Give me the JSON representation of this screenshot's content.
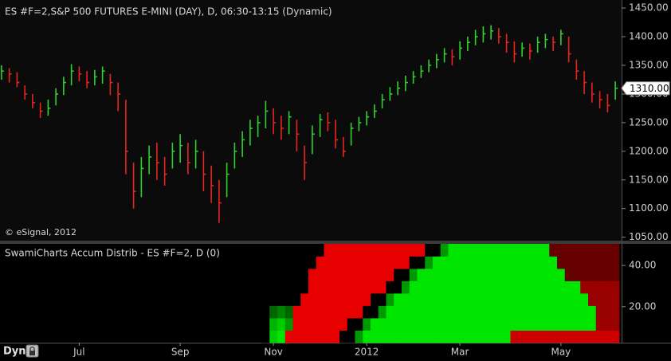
{
  "chart_data": [
    {
      "type": "ohlc",
      "title": "ES #F=2,S&P 500 FUTURES E-MINI (DAY), D, 06:30-13:15 (Dynamic)",
      "copyright": "© eSignal, 2012",
      "categories": [
        null,
        null,
        null,
        null,
        null,
        null,
        null,
        null,
        null,
        null,
        "Jul",
        null,
        null,
        null,
        null,
        null,
        null,
        null,
        null,
        null,
        null,
        null,
        null,
        "Sep",
        null,
        null,
        null,
        null,
        null,
        null,
        null,
        null,
        null,
        null,
        null,
        "Nov",
        null,
        null,
        null,
        null,
        null,
        null,
        null,
        null,
        null,
        null,
        null,
        "2012",
        null,
        null,
        null,
        null,
        null,
        null,
        null,
        null,
        null,
        null,
        null,
        "Mar",
        null,
        null,
        null,
        null,
        null,
        null,
        null,
        null,
        null,
        null,
        null,
        null,
        "May",
        null,
        null,
        null,
        null,
        null,
        null,
        null
      ],
      "high": [
        1350,
        1345,
        1338,
        1315,
        1300,
        1285,
        1290,
        1310,
        1330,
        1352,
        1348,
        1340,
        1342,
        1348,
        1335,
        1320,
        1290,
        1180,
        1190,
        1210,
        1215,
        1190,
        1215,
        1230,
        1215,
        1220,
        1200,
        1175,
        1150,
        1180,
        1215,
        1235,
        1255,
        1262,
        1288,
        1275,
        1262,
        1270,
        1255,
        1210,
        1245,
        1265,
        1268,
        1255,
        1225,
        1250,
        1260,
        1270,
        1282,
        1300,
        1312,
        1322,
        1332,
        1340,
        1350,
        1360,
        1370,
        1380,
        1378,
        1392,
        1400,
        1412,
        1418,
        1420,
        1415,
        1405,
        1392,
        1390,
        1388,
        1400,
        1405,
        1400,
        1412,
        1400,
        1360,
        1340,
        1320,
        1305,
        1300,
        1322
      ],
      "low": [
        1325,
        1320,
        1312,
        1290,
        1275,
        1258,
        1262,
        1280,
        1298,
        1315,
        1322,
        1310,
        1315,
        1318,
        1298,
        1270,
        1160,
        1100,
        1120,
        1160,
        1150,
        1140,
        1170,
        1180,
        1160,
        1170,
        1130,
        1110,
        1075,
        1120,
        1170,
        1190,
        1210,
        1225,
        1240,
        1230,
        1220,
        1230,
        1200,
        1150,
        1195,
        1225,
        1235,
        1205,
        1190,
        1210,
        1235,
        1245,
        1258,
        1275,
        1288,
        1298,
        1305,
        1318,
        1328,
        1338,
        1345,
        1355,
        1350,
        1360,
        1375,
        1385,
        1390,
        1395,
        1388,
        1372,
        1355,
        1365,
        1360,
        1372,
        1380,
        1375,
        1385,
        1355,
        1325,
        1300,
        1285,
        1275,
        1268,
        1290
      ],
      "close": [
        1340,
        1335,
        1320,
        1300,
        1285,
        1270,
        1275,
        1300,
        1320,
        1340,
        1335,
        1320,
        1330,
        1340,
        1320,
        1300,
        1200,
        1130,
        1170,
        1190,
        1180,
        1160,
        1200,
        1210,
        1180,
        1200,
        1160,
        1140,
        1110,
        1160,
        1200,
        1220,
        1240,
        1250,
        1270,
        1250,
        1240,
        1260,
        1230,
        1180,
        1230,
        1255,
        1250,
        1220,
        1200,
        1240,
        1250,
        1260,
        1270,
        1290,
        1300,
        1310,
        1320,
        1330,
        1340,
        1350,
        1360,
        1370,
        1365,
        1380,
        1390,
        1400,
        1405,
        1410,
        1400,
        1390,
        1370,
        1380,
        1375,
        1390,
        1395,
        1390,
        1405,
        1370,
        1340,
        1320,
        1300,
        1290,
        1280,
        1310
      ],
      "up_color": "#2fd12f",
      "down_color": "#e8251f",
      "ylim": [
        1044,
        1464
      ],
      "yticks": [
        {
          "value": 1050,
          "label": "1050.00"
        },
        {
          "value": 1100,
          "label": "1100.00"
        },
        {
          "value": 1150,
          "label": "1150.00"
        },
        {
          "value": 1200,
          "label": "1200.00"
        },
        {
          "value": 1250,
          "label": "1250.00"
        },
        {
          "value": 1300,
          "label": "1300.00"
        },
        {
          "value": 1350,
          "label": "1350.00"
        },
        {
          "value": 1400,
          "label": "1400.00"
        },
        {
          "value": 1450,
          "label": "1450.00"
        }
      ],
      "last_price": {
        "value": 1310,
        "label": "1310.00"
      }
    },
    {
      "type": "heatmap",
      "title": "SwamiCharts Accum Distrib - ES #F=2, D (0)",
      "y_bins": [
        2.5,
        8.5,
        14.5,
        20.5,
        26.5,
        32.5,
        38.5,
        44.5,
        50.5
      ],
      "values": [
        null,
        null,
        null,
        null,
        null,
        null,
        null,
        null,
        null,
        null,
        null,
        null,
        null,
        null,
        null,
        null,
        null,
        null,
        null,
        null,
        null,
        null,
        null,
        null,
        null,
        null,
        null,
        null,
        null,
        null,
        null,
        null,
        null,
        null,
        [
          0,
          0,
          0,
          0,
          0,
          0,
          0,
          0
        ],
        [
          0.8,
          0.7,
          0.4,
          0,
          0,
          0,
          0,
          0
        ],
        [
          0.9,
          0.8,
          0.5,
          0,
          0,
          0,
          0,
          0
        ],
        [
          -0.9,
          0.6,
          0.4,
          0,
          0,
          0,
          0,
          0
        ],
        [
          -0.9,
          -0.9,
          -0.9,
          0,
          0,
          0,
          0,
          0
        ],
        [
          -0.9,
          -0.9,
          -0.9,
          -0.9,
          0,
          0,
          0,
          0
        ],
        [
          -0.9,
          -0.9,
          -0.9,
          -0.9,
          -0.9,
          -0.9,
          0,
          0
        ],
        [
          -0.9,
          -0.9,
          -0.9,
          -0.9,
          -0.9,
          -0.9,
          -0.9,
          0
        ],
        [
          -0.9,
          -0.9,
          -0.9,
          -0.9,
          -0.9,
          -0.9,
          -0.9,
          -0.9
        ],
        [
          -0.9,
          -0.9,
          -0.9,
          -0.9,
          -0.9,
          -0.9,
          -0.9,
          -0.9
        ],
        [
          0,
          -0.9,
          -0.9,
          -0.9,
          -0.9,
          -0.9,
          -0.9,
          -0.9
        ],
        [
          0,
          0,
          -0.9,
          -0.9,
          -0.9,
          -0.9,
          -0.9,
          -0.9
        ],
        [
          0.6,
          0,
          -0.9,
          -0.9,
          -0.9,
          -0.9,
          -0.9,
          -0.9
        ],
        [
          0.9,
          0.6,
          0,
          -0.9,
          -0.9,
          -0.9,
          -0.9,
          -0.9
        ],
        [
          0.9,
          0.9,
          0,
          0,
          -0.9,
          -0.9,
          -0.9,
          -0.9
        ],
        [
          0.9,
          0.9,
          0.6,
          0,
          -0.9,
          -0.9,
          -0.9,
          -0.9
        ],
        [
          0.9,
          0.9,
          0.9,
          0.6,
          0,
          -0.9,
          -0.9,
          -0.9
        ],
        [
          0.9,
          0.9,
          0.9,
          0.9,
          0,
          0,
          -0.9,
          -0.9
        ],
        [
          0.9,
          0.9,
          0.9,
          0.9,
          0.6,
          0,
          -0.9,
          -0.9
        ],
        [
          0.9,
          0.9,
          0.9,
          0.9,
          0.9,
          0.6,
          0,
          -0.9
        ],
        [
          0.9,
          0.9,
          0.9,
          0.9,
          0.9,
          0.9,
          0,
          -0.9
        ],
        [
          0.9,
          0.9,
          0.9,
          0.9,
          0.9,
          0.9,
          0.6,
          0
        ],
        [
          0.9,
          0.9,
          0.9,
          0.9,
          0.9,
          0.9,
          0.9,
          0
        ],
        [
          0.9,
          0.9,
          0.9,
          0.9,
          0.9,
          0.9,
          0.9,
          0.6
        ],
        [
          0.9,
          0.9,
          0.9,
          0.9,
          0.9,
          0.9,
          0.9,
          0.9
        ],
        [
          0.9,
          0.9,
          0.9,
          0.9,
          0.9,
          0.9,
          0.9,
          0.9
        ],
        [
          0.9,
          0.9,
          0.9,
          0.9,
          0.9,
          0.9,
          0.9,
          0.9
        ],
        [
          0.9,
          0.9,
          0.9,
          0.9,
          0.9,
          0.9,
          0.9,
          0.9
        ],
        [
          0.9,
          0.9,
          0.9,
          0.9,
          0.9,
          0.9,
          0.9,
          0.9
        ],
        [
          0.9,
          0.9,
          0.9,
          0.9,
          0.9,
          0.9,
          0.9,
          0.9
        ],
        [
          0.9,
          0.9,
          0.9,
          0.9,
          0.9,
          0.9,
          0.9,
          0.9
        ],
        [
          0.9,
          0.9,
          0.9,
          0.9,
          0.9,
          0.9,
          0.9,
          0.9
        ],
        [
          -0.8,
          0.9,
          0.9,
          0.9,
          0.9,
          0.9,
          0.9,
          0.9
        ],
        [
          -0.8,
          0.9,
          0.9,
          0.9,
          0.9,
          0.9,
          0.9,
          0.9
        ],
        [
          -0.8,
          0.9,
          0.9,
          0.9,
          0.9,
          0.9,
          0.9,
          0.9
        ],
        [
          -0.8,
          0.9,
          0.9,
          0.9,
          0.9,
          0.9,
          0.9,
          0.9
        ],
        [
          -0.8,
          0.9,
          0.9,
          0.9,
          0.9,
          0.9,
          0.9,
          0.9
        ],
        [
          -0.8,
          0.9,
          0.9,
          0.9,
          0.9,
          0.9,
          0.9,
          -0.4
        ],
        [
          -0.8,
          0.9,
          0.9,
          0.9,
          0.9,
          0.9,
          -0.4,
          -0.4
        ],
        [
          -0.8,
          0.9,
          0.9,
          0.9,
          0.9,
          -0.4,
          -0.4,
          -0.4
        ],
        [
          -0.8,
          0.9,
          0.9,
          0.9,
          0.9,
          -0.4,
          -0.4,
          -0.4
        ],
        [
          -0.8,
          0.9,
          0.9,
          0.9,
          -0.6,
          -0.4,
          -0.4,
          -0.4
        ],
        [
          -0.8,
          0.9,
          0.9,
          -0.6,
          -0.6,
          -0.4,
          -0.4,
          -0.4
        ],
        [
          -0.8,
          -0.6,
          -0.6,
          -0.6,
          -0.6,
          -0.4,
          -0.4,
          -0.4
        ],
        [
          -0.8,
          -0.6,
          -0.6,
          -0.6,
          -0.6,
          -0.4,
          -0.4,
          -0.4
        ],
        [
          -0.8,
          -0.6,
          -0.6,
          -0.6,
          -0.6,
          -0.4,
          -0.4,
          -0.4
        ]
      ],
      "positive_color": "#00ff00",
      "negative_color": "#ff0000",
      "ylim": [
        2.5,
        50.5
      ],
      "yticks": [
        {
          "value": 20,
          "label": "20.00"
        },
        {
          "value": 40,
          "label": "40.00"
        }
      ]
    }
  ],
  "toolbar": {
    "button": "Dyn"
  }
}
